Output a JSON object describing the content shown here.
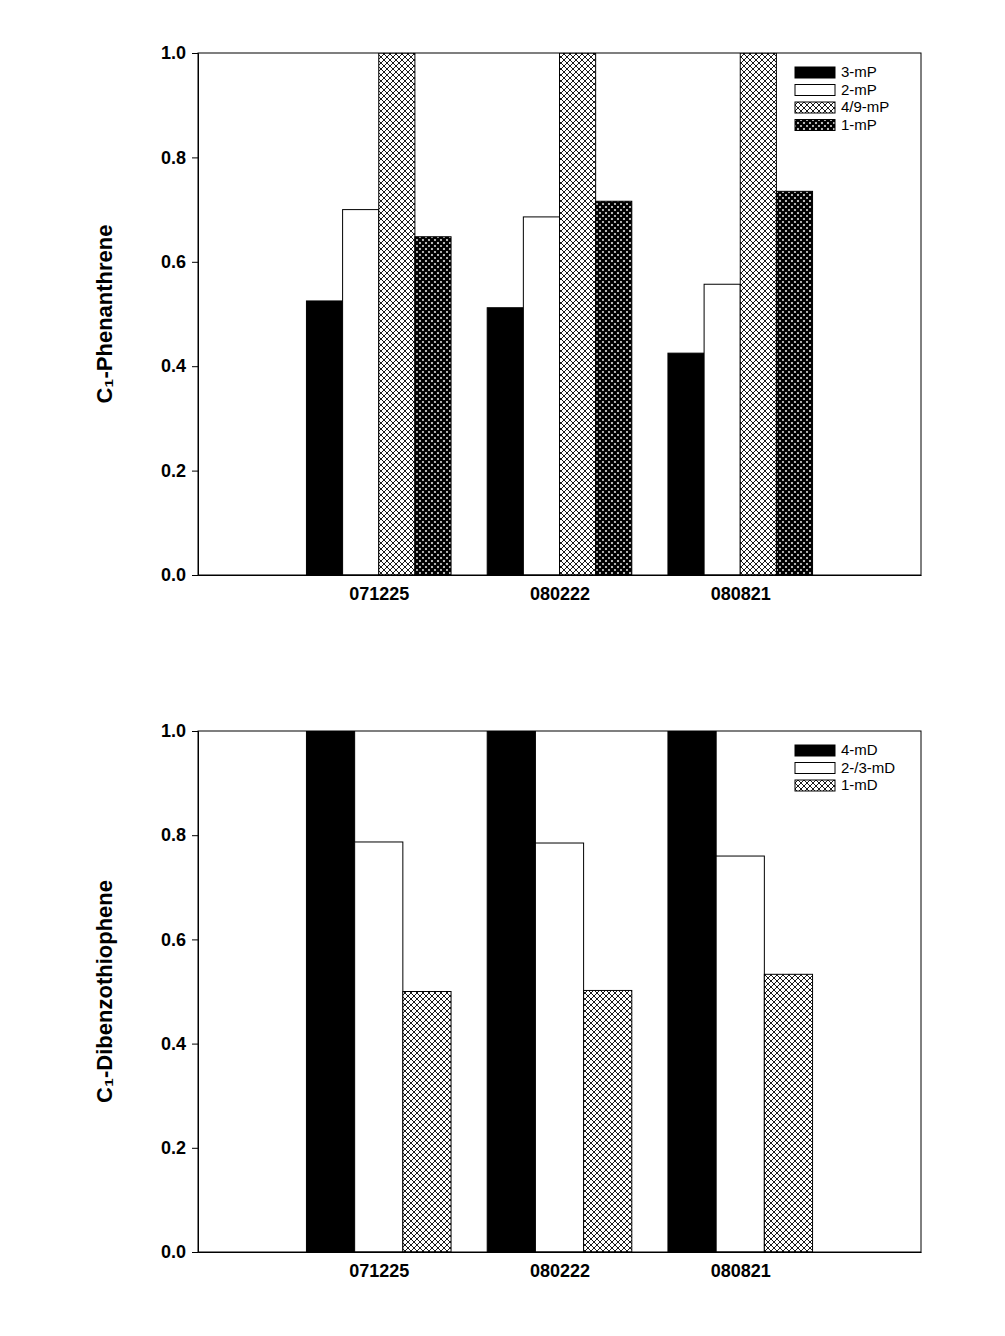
{
  "chart_data": [
    {
      "type": "bar",
      "y_label": "C₁-Phenanthrene",
      "categories": [
        "071225",
        "080222",
        "080821"
      ],
      "series": [
        {
          "name": "3-mP",
          "color": "#000000",
          "values": [
            0.525,
            0.512,
            0.425
          ]
        },
        {
          "name": "2-mP",
          "color": "#ffffff",
          "values": [
            0.7,
            0.686,
            0.557
          ]
        },
        {
          "name": "4/9-mP",
          "color": "#c8c8c8",
          "values": [
            1.0,
            1.0,
            1.0
          ]
        },
        {
          "name": "1-mP",
          "color": "#404040",
          "values": [
            0.648,
            0.716,
            0.735
          ]
        }
      ],
      "ylim": [
        0,
        1
      ],
      "yticks": [
        {
          "value": 0,
          "label": "0.0"
        },
        {
          "value": 0.2,
          "label": "0.2"
        },
        {
          "value": 0.4,
          "label": "0.4"
        },
        {
          "value": 0.6,
          "label": "0.6"
        },
        {
          "value": 0.8,
          "label": "0.8"
        },
        {
          "value": 1,
          "label": "1.0"
        }
      ],
      "legend": "upper right"
    },
    {
      "type": "bar",
      "y_label": "C₁-Dibenzothiophene",
      "categories": [
        "071225",
        "080222",
        "080821"
      ],
      "series": [
        {
          "name": "4-mD",
          "color": "#000000",
          "values": [
            1.0,
            1.0,
            1.0
          ]
        },
        {
          "name": "2-/3-mD",
          "color": "#ffffff",
          "values": [
            0.787,
            0.785,
            0.76
          ]
        },
        {
          "name": "1-mD",
          "color": "#c8c8c8",
          "values": [
            0.5,
            0.502,
            0.533
          ]
        }
      ],
      "ylim": [
        0,
        1
      ],
      "yticks": [
        {
          "value": 0,
          "label": "0.0"
        },
        {
          "value": 0.2,
          "label": "0.2"
        },
        {
          "value": 0.4,
          "label": "0.4"
        },
        {
          "value": 0.6,
          "label": "0.6"
        },
        {
          "value": 0.8,
          "label": "0.8"
        },
        {
          "value": 1,
          "label": "1.0"
        }
      ],
      "legend": "upper right"
    }
  ]
}
